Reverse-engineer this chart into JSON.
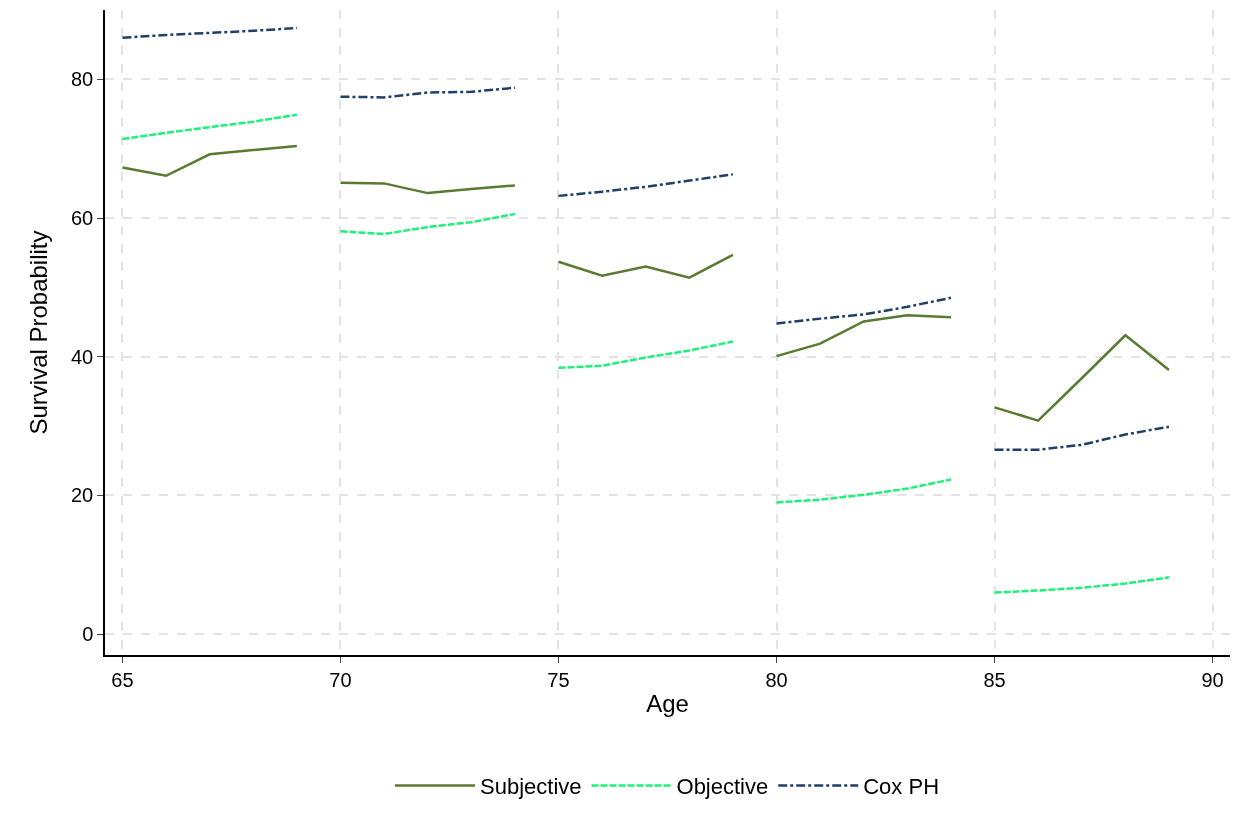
{
  "chart_data": {
    "type": "line",
    "xlabel": "Age",
    "ylabel": "Survival Probability",
    "xlim": [
      64.6,
      90.4
    ],
    "xticks": [
      65,
      70,
      75,
      80,
      85,
      90
    ],
    "ylim": [
      -3,
      90
    ],
    "yticks": [
      0,
      20,
      40,
      60,
      80
    ],
    "grid": true,
    "legend": "bottom",
    "marker": "none",
    "series": [
      {
        "name": "Subjective",
        "color": "#5a7a32",
        "line_style": "solid",
        "x": [
          65,
          66,
          67,
          68,
          69
        ],
        "values": [
          67.3,
          66.1,
          69.2,
          69.8,
          70.4
        ]
      },
      {
        "color": "#5a7a32",
        "line_style": "solid",
        "x": [
          70,
          71,
          72,
          73,
          74
        ],
        "values": [
          65.1,
          65.0,
          63.6,
          64.2,
          64.7
        ]
      },
      {
        "color": "#5a7a32",
        "line_style": "solid",
        "x": [
          75,
          76,
          77,
          78,
          79
        ],
        "values": [
          53.7,
          51.7,
          53.0,
          51.4,
          54.7
        ]
      },
      {
        "color": "#5a7a32",
        "line_style": "solid",
        "x": [
          80,
          81,
          82,
          83,
          84
        ],
        "values": [
          40.1,
          41.9,
          45.1,
          46.0,
          45.7
        ]
      },
      {
        "color": "#5a7a32",
        "line_style": "solid",
        "x": [
          85,
          86,
          87,
          88,
          89
        ],
        "values": [
          32.7,
          30.8,
          36.9,
          43.1,
          38.1
        ]
      },
      {
        "name": "Objective",
        "color": "#1ef07a",
        "line_style": "dashed",
        "x": [
          65,
          66,
          67,
          68,
          69
        ],
        "values": [
          71.4,
          72.3,
          73.1,
          73.9,
          74.9
        ]
      },
      {
        "color": "#1ef07a",
        "line_style": "dashed",
        "x": [
          70,
          71,
          72,
          73,
          74
        ],
        "values": [
          58.1,
          57.7,
          58.7,
          59.4,
          60.6
        ]
      },
      {
        "color": "#1ef07a",
        "line_style": "dashed",
        "x": [
          75,
          76,
          77,
          78,
          79
        ],
        "values": [
          38.4,
          38.7,
          39.9,
          40.9,
          42.2
        ]
      },
      {
        "color": "#1ef07a",
        "line_style": "dashed",
        "x": [
          80,
          81,
          82,
          83,
          84
        ],
        "values": [
          19.0,
          19.4,
          20.1,
          21.0,
          22.3
        ]
      },
      {
        "color": "#1ef07a",
        "line_style": "dashed",
        "x": [
          85,
          86,
          87,
          88,
          89
        ],
        "values": [
          6.0,
          6.3,
          6.7,
          7.3,
          8.2
        ]
      },
      {
        "name": "Cox PH",
        "color": "#1f3f66",
        "line_style": "dashdot",
        "x": [
          65,
          66,
          67,
          68,
          69
        ],
        "values": [
          86.0,
          86.4,
          86.7,
          87.0,
          87.4
        ]
      },
      {
        "color": "#1f3f66",
        "line_style": "dashdot",
        "x": [
          70,
          71,
          72,
          73,
          74
        ],
        "values": [
          77.5,
          77.4,
          78.1,
          78.2,
          78.8
        ]
      },
      {
        "color": "#1f3f66",
        "line_style": "dashdot",
        "x": [
          75,
          76,
          77,
          78,
          79
        ],
        "values": [
          63.2,
          63.8,
          64.5,
          65.4,
          66.3
        ]
      },
      {
        "color": "#1f3f66",
        "line_style": "dashdot",
        "x": [
          80,
          81,
          82,
          83,
          84
        ],
        "values": [
          44.8,
          45.5,
          46.1,
          47.2,
          48.5
        ]
      },
      {
        "color": "#1f3f66",
        "line_style": "dashdot",
        "x": [
          85,
          86,
          87,
          88,
          89
        ],
        "values": [
          26.6,
          26.6,
          27.3,
          28.8,
          29.9
        ]
      }
    ]
  }
}
